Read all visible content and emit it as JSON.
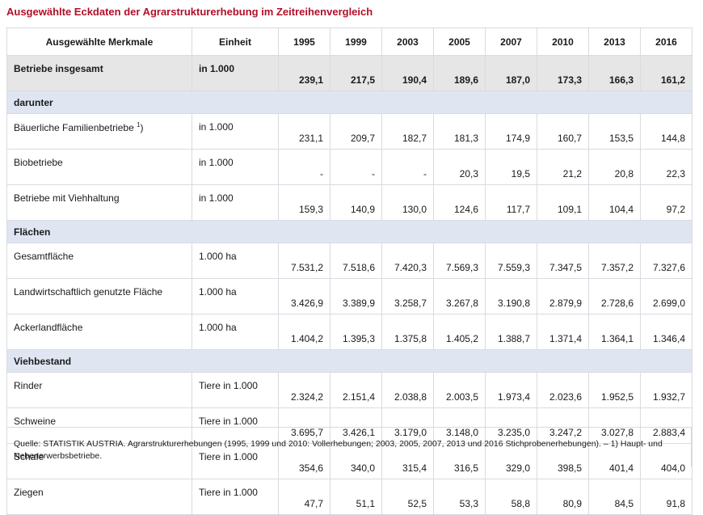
{
  "title": "Ausgewählte Eckdaten der Agrarstrukturerhebung im Zeitreihenvergleich",
  "header": {
    "merkmal": "Ausgewählte Merkmale",
    "einheit": "Einheit",
    "years": [
      "1995",
      "1999",
      "2003",
      "2005",
      "2007",
      "2010",
      "2013",
      "2016"
    ]
  },
  "rows": [
    {
      "kind": "total",
      "label": "Betriebe insgesamt",
      "unit": "in 1.000",
      "values": [
        "239,1",
        "217,5",
        "190,4",
        "189,6",
        "187,0",
        "173,3",
        "166,3",
        "161,2"
      ]
    },
    {
      "kind": "section",
      "label": "darunter"
    },
    {
      "kind": "data",
      "label": "Bäuerliche Familienbetriebe",
      "footnote": "1",
      "label_suffix": ")",
      "unit": "in 1.000",
      "values": [
        "231,1",
        "209,7",
        "182,7",
        "181,3",
        "174,9",
        "160,7",
        "153,5",
        "144,8"
      ]
    },
    {
      "kind": "data",
      "label": "Biobetriebe",
      "unit": "in 1.000",
      "values": [
        "-",
        "-",
        "-",
        "20,3",
        "19,5",
        "21,2",
        "20,8",
        "22,3"
      ]
    },
    {
      "kind": "data",
      "label": "Betriebe mit Viehhaltung",
      "unit": "in 1.000",
      "values": [
        "159,3",
        "140,9",
        "130,0",
        "124,6",
        "117,7",
        "109,1",
        "104,4",
        "97,2"
      ]
    },
    {
      "kind": "section",
      "label": "Flächen"
    },
    {
      "kind": "data",
      "label": "Gesamtfläche",
      "unit": "1.000 ha",
      "values": [
        "7.531,2",
        "7.518,6",
        "7.420,3",
        "7.569,3",
        "7.559,3",
        "7.347,5",
        "7.357,2",
        "7.327,6"
      ]
    },
    {
      "kind": "data",
      "label": "Landwirtschaftlich genutzte Fläche",
      "unit": "1.000 ha",
      "values": [
        "3.426,9",
        "3.389,9",
        "3.258,7",
        "3.267,8",
        "3.190,8",
        "2.879,9",
        "2.728,6",
        "2.699,0"
      ]
    },
    {
      "kind": "data",
      "label": "Ackerlandfläche",
      "unit": "1.000 ha",
      "values": [
        "1.404,2",
        "1.395,3",
        "1.375,8",
        "1.405,2",
        "1.388,7",
        "1.371,4",
        "1.364,1",
        "1.346,4"
      ]
    },
    {
      "kind": "section",
      "label": "Viehbestand"
    },
    {
      "kind": "data",
      "label": "Rinder",
      "unit": "Tiere in 1.000",
      "values": [
        "2.324,2",
        "2.151,4",
        "2.038,8",
        "2.003,5",
        "1.973,4",
        "2.023,6",
        "1.952,5",
        "1.932,7"
      ]
    },
    {
      "kind": "data",
      "label": "Schweine",
      "unit": "Tiere in 1.000",
      "values": [
        "3.695,7",
        "3.426,1",
        "3.179,0",
        "3.148,0",
        "3.235,0",
        "3.247,2",
        "3.027,8",
        "2.883,4"
      ]
    },
    {
      "kind": "data",
      "label": "Schafe",
      "unit": "Tiere in 1.000",
      "values": [
        "354,6",
        "340,0",
        "315,4",
        "316,5",
        "329,0",
        "398,5",
        "401,4",
        "404,0"
      ]
    },
    {
      "kind": "data",
      "label": "Ziegen",
      "unit": "Tiere in 1.000",
      "values": [
        "47,7",
        "51,1",
        "52,5",
        "53,3",
        "58,8",
        "80,9",
        "84,5",
        "91,8"
      ]
    }
  ],
  "source_note": "Quelle: STATISTIK AUSTRIA. Agrarstrukturerhebungen (1995, 1999 und 2010: Vollerhebungen; 2003, 2005, 2007, 2013 und 2016 Stichprobenerhebungen). – 1) Haupt- und Nebenerwerbsbetriebe."
}
